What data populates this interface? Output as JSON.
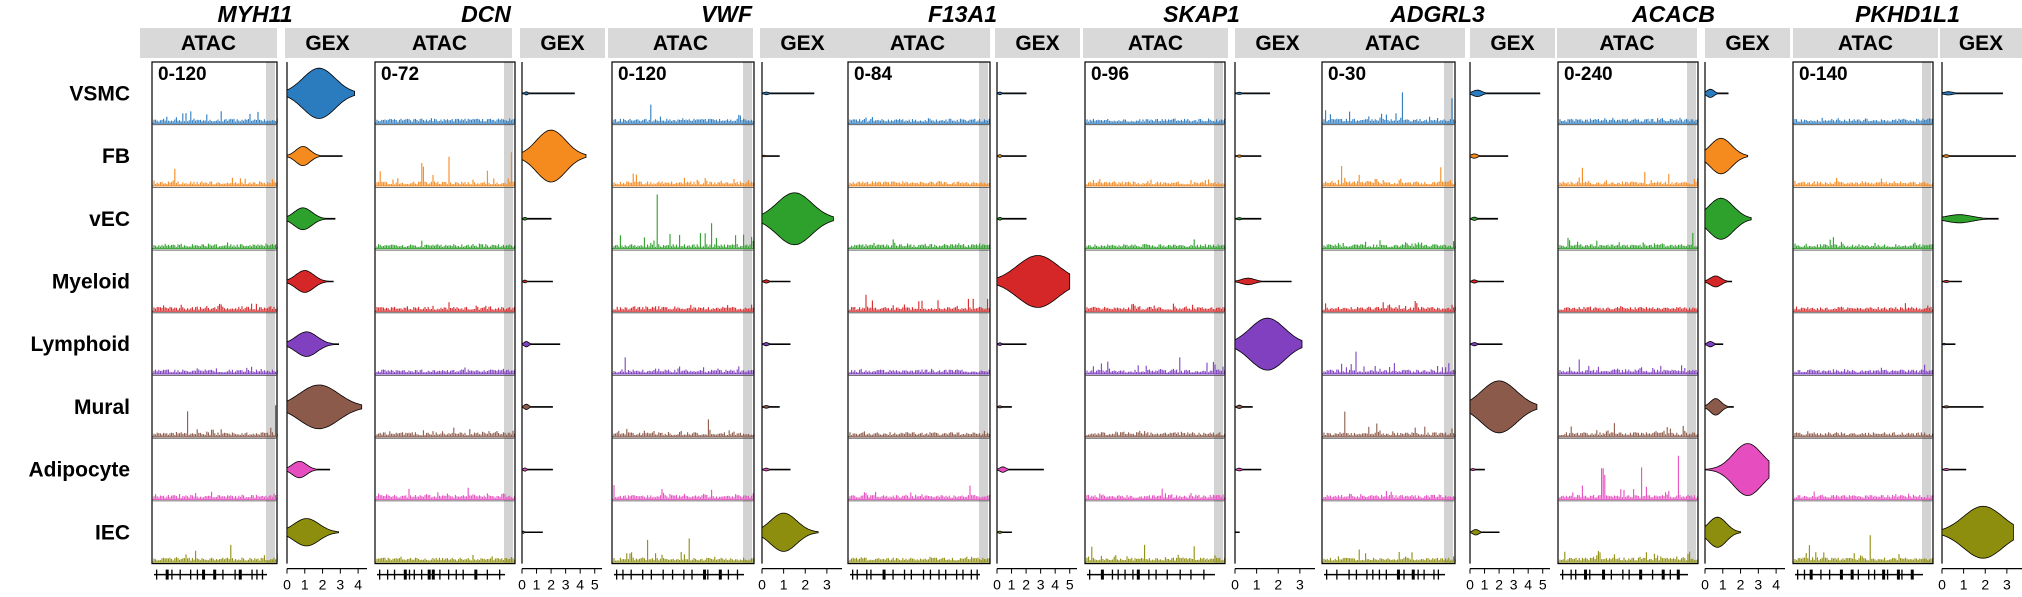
{
  "chart_data": {
    "type": "coverage_violin_panel",
    "row_labels": [
      "VSMC",
      "FB",
      "vEC",
      "Myeloid",
      "Lymphoid",
      "Mural",
      "Adipocyte",
      "IEC"
    ],
    "row_colors": [
      "#2b7bbf",
      "#f58a1f",
      "#2ea02c",
      "#d62728",
      "#8040c0",
      "#8c5a4a",
      "#e64ec0",
      "#8e8e0e"
    ],
    "atac_header": "ATAC",
    "gex_header": "GEX",
    "panels": [
      {
        "gene": "MYH11",
        "atac_range": "0-120",
        "gex_ticks": [
          "0",
          "1",
          "2",
          "3",
          "4"
        ],
        "gex_max": 4.5,
        "atac_activity": [
          0.85,
          0.35,
          0.25,
          0.28,
          0.3,
          0.55,
          0.18,
          0.4
        ],
        "gex": [
          {
            "center": 1.8,
            "spread": 0.9,
            "tail": 3.8,
            "width": 0.92
          },
          {
            "center": 0.9,
            "spread": 0.4,
            "tail": 3.1,
            "width": 0.35
          },
          {
            "center": 0.9,
            "spread": 0.5,
            "tail": 2.7,
            "width": 0.4
          },
          {
            "center": 1.0,
            "spread": 0.5,
            "tail": 2.6,
            "width": 0.4
          },
          {
            "center": 1.1,
            "spread": 0.6,
            "tail": 2.9,
            "width": 0.45
          },
          {
            "center": 1.8,
            "spread": 1.1,
            "tail": 4.2,
            "width": 0.8
          },
          {
            "center": 0.7,
            "spread": 0.4,
            "tail": 2.4,
            "width": 0.3
          },
          {
            "center": 1.1,
            "spread": 0.7,
            "tail": 2.9,
            "width": 0.5
          }
        ]
      },
      {
        "gene": "DCN",
        "atac_range": "0-72",
        "gex_ticks": [
          "0",
          "1",
          "2",
          "3",
          "4",
          "5"
        ],
        "gex_max": 5.5,
        "atac_activity": [
          0.15,
          0.8,
          0.08,
          0.12,
          0.1,
          0.35,
          0.22,
          0.15
        ],
        "gex": [
          {
            "center": 0.3,
            "spread": 0.1,
            "tail": 3.6,
            "width": 0.06
          },
          {
            "center": 2.0,
            "spread": 1.0,
            "tail": 4.4,
            "width": 0.95
          },
          {
            "center": 0.2,
            "spread": 0.1,
            "tail": 2.0,
            "width": 0.05
          },
          {
            "center": 0.2,
            "spread": 0.1,
            "tail": 2.1,
            "width": 0.05
          },
          {
            "center": 0.3,
            "spread": 0.15,
            "tail": 2.6,
            "width": 0.1
          },
          {
            "center": 0.3,
            "spread": 0.15,
            "tail": 2.1,
            "width": 0.1
          },
          {
            "center": 0.2,
            "spread": 0.1,
            "tail": 2.1,
            "width": 0.06
          },
          {
            "center": 0.1,
            "spread": 0.05,
            "tail": 1.4,
            "width": 0.04
          }
        ]
      },
      {
        "gene": "VWF",
        "atac_range": "0-120",
        "gex_ticks": [
          "0",
          "1",
          "2",
          "3"
        ],
        "gex_max": 3.7,
        "atac_activity": [
          0.45,
          0.3,
          0.9,
          0.25,
          0.3,
          0.3,
          0.3,
          0.5
        ],
        "gex": [
          {
            "center": 0.2,
            "spread": 0.1,
            "tail": 2.4,
            "width": 0.05
          },
          {
            "center": 0.1,
            "spread": 0.05,
            "tail": 0.8,
            "width": 0.03
          },
          {
            "center": 1.5,
            "spread": 0.8,
            "tail": 3.3,
            "width": 0.95
          },
          {
            "center": 0.2,
            "spread": 0.1,
            "tail": 1.3,
            "width": 0.06
          },
          {
            "center": 0.2,
            "spread": 0.1,
            "tail": 1.3,
            "width": 0.06
          },
          {
            "center": 0.2,
            "spread": 0.1,
            "tail": 0.8,
            "width": 0.05
          },
          {
            "center": 0.2,
            "spread": 0.1,
            "tail": 1.3,
            "width": 0.05
          },
          {
            "center": 1.0,
            "spread": 0.6,
            "tail": 2.6,
            "width": 0.7
          }
        ]
      },
      {
        "gene": "F13A1",
        "atac_range": "0-84",
        "gex_ticks": [
          "0",
          "1",
          "2",
          "3",
          "4",
          "5"
        ],
        "gex_max": 5.5,
        "atac_activity": [
          0.12,
          0.1,
          0.15,
          0.75,
          0.12,
          0.1,
          0.3,
          0.2
        ],
        "gex": [
          {
            "center": 0.2,
            "spread": 0.1,
            "tail": 2.0,
            "width": 0.05
          },
          {
            "center": 0.2,
            "spread": 0.1,
            "tail": 2.0,
            "width": 0.05
          },
          {
            "center": 0.2,
            "spread": 0.1,
            "tail": 2.0,
            "width": 0.05
          },
          {
            "center": 2.8,
            "spread": 1.4,
            "tail": 5.0,
            "width": 0.95
          },
          {
            "center": 0.2,
            "spread": 0.1,
            "tail": 2.0,
            "width": 0.05
          },
          {
            "center": 0.2,
            "spread": 0.1,
            "tail": 1.0,
            "width": 0.04
          },
          {
            "center": 0.4,
            "spread": 0.2,
            "tail": 3.2,
            "width": 0.1
          },
          {
            "center": 0.2,
            "spread": 0.1,
            "tail": 1.0,
            "width": 0.04
          }
        ]
      },
      {
        "gene": "SKAP1",
        "atac_range": "0-96",
        "gex_ticks": [
          "0",
          "1",
          "2",
          "3"
        ],
        "gex_max": 3.7,
        "atac_activity": [
          0.1,
          0.18,
          0.12,
          0.3,
          0.75,
          0.2,
          0.18,
          0.3
        ],
        "gex": [
          {
            "center": 0.2,
            "spread": 0.1,
            "tail": 1.6,
            "width": 0.04
          },
          {
            "center": 0.2,
            "spread": 0.1,
            "tail": 1.2,
            "width": 0.04
          },
          {
            "center": 0.2,
            "spread": 0.1,
            "tail": 1.2,
            "width": 0.04
          },
          {
            "center": 0.6,
            "spread": 0.3,
            "tail": 2.6,
            "width": 0.12
          },
          {
            "center": 1.5,
            "spread": 0.8,
            "tail": 3.1,
            "width": 0.95
          },
          {
            "center": 0.2,
            "spread": 0.1,
            "tail": 0.8,
            "width": 0.06
          },
          {
            "center": 0.2,
            "spread": 0.1,
            "tail": 1.2,
            "width": 0.05
          },
          {
            "center": 0.0,
            "spread": 0.05,
            "tail": 0.2,
            "width": 0.02
          }
        ]
      },
      {
        "gene": "ADGRL3",
        "atac_range": "0-30",
        "gex_ticks": [
          "0",
          "1",
          "2",
          "3",
          "4",
          "5"
        ],
        "gex_max": 5.5,
        "atac_activity": [
          0.7,
          0.35,
          0.35,
          0.45,
          0.6,
          0.55,
          0.45,
          0.65
        ],
        "gex": [
          {
            "center": 0.5,
            "spread": 0.3,
            "tail": 4.8,
            "width": 0.12
          },
          {
            "center": 0.3,
            "spread": 0.2,
            "tail": 2.6,
            "width": 0.08
          },
          {
            "center": 0.3,
            "spread": 0.15,
            "tail": 1.9,
            "width": 0.06
          },
          {
            "center": 0.3,
            "spread": 0.15,
            "tail": 2.3,
            "width": 0.06
          },
          {
            "center": 0.3,
            "spread": 0.15,
            "tail": 2.2,
            "width": 0.06
          },
          {
            "center": 2.0,
            "spread": 1.2,
            "tail": 4.6,
            "width": 0.95
          },
          {
            "center": 0.2,
            "spread": 0.1,
            "tail": 1.0,
            "width": 0.04
          },
          {
            "center": 0.4,
            "spread": 0.2,
            "tail": 2.0,
            "width": 0.1
          }
        ]
      },
      {
        "gene": "ACACB",
        "atac_range": "0-240",
        "gex_ticks": [
          "0",
          "1",
          "2",
          "3",
          "4"
        ],
        "gex_max": 4.5,
        "atac_activity": [
          0.2,
          0.5,
          0.35,
          0.15,
          0.3,
          0.35,
          0.85,
          0.5
        ],
        "gex": [
          {
            "center": 0.3,
            "spread": 0.2,
            "tail": 1.3,
            "width": 0.15
          },
          {
            "center": 0.9,
            "spread": 0.6,
            "tail": 2.4,
            "width": 0.65
          },
          {
            "center": 0.9,
            "spread": 0.7,
            "tail": 2.6,
            "width": 0.75
          },
          {
            "center": 0.6,
            "spread": 0.3,
            "tail": 1.5,
            "width": 0.2
          },
          {
            "center": 0.3,
            "spread": 0.15,
            "tail": 1.0,
            "width": 0.1
          },
          {
            "center": 0.6,
            "spread": 0.3,
            "tail": 1.6,
            "width": 0.3
          },
          {
            "center": 2.4,
            "spread": 0.8,
            "tail": 3.6,
            "width": 0.95
          },
          {
            "center": 0.7,
            "spread": 0.5,
            "tail": 2.0,
            "width": 0.55
          }
        ]
      },
      {
        "gene": "PKHD1L1",
        "atac_range": "0-140",
        "gex_ticks": [
          "0",
          "1",
          "2",
          "3"
        ],
        "gex_max": 3.7,
        "atac_activity": [
          0.1,
          0.1,
          0.2,
          0.1,
          0.1,
          0.12,
          0.15,
          0.55
        ],
        "gex": [
          {
            "center": 0.3,
            "spread": 0.2,
            "tail": 2.8,
            "width": 0.06
          },
          {
            "center": 0.2,
            "spread": 0.1,
            "tail": 3.4,
            "width": 0.05
          },
          {
            "center": 0.8,
            "spread": 0.6,
            "tail": 2.6,
            "width": 0.15
          },
          {
            "center": 0.2,
            "spread": 0.1,
            "tail": 0.9,
            "width": 0.04
          },
          {
            "center": 0.1,
            "spread": 0.05,
            "tail": 0.6,
            "width": 0.03
          },
          {
            "center": 0.2,
            "spread": 0.1,
            "tail": 1.9,
            "width": 0.04
          },
          {
            "center": 0.2,
            "spread": 0.1,
            "tail": 1.1,
            "width": 0.04
          },
          {
            "center": 1.9,
            "spread": 0.9,
            "tail": 3.3,
            "width": 0.95
          }
        ]
      }
    ]
  }
}
